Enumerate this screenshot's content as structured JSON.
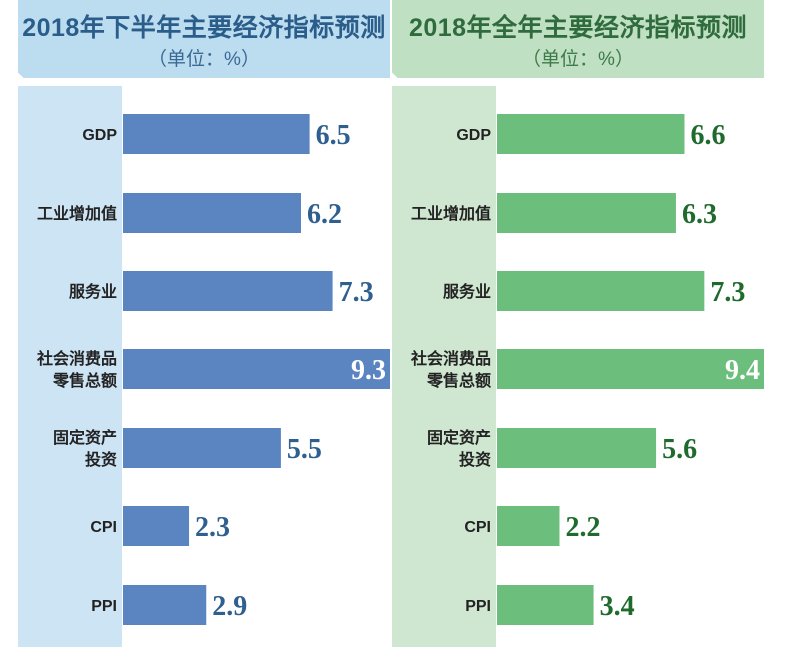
{
  "chart_data": [
    {
      "type": "bar",
      "orientation": "horizontal",
      "title": "2018年下半年主要经济指标预测",
      "subtitle": "（单位：%）",
      "categories": [
        [
          "GDP"
        ],
        [
          "工业增加值"
        ],
        [
          "服务业"
        ],
        [
          "社会消费品",
          "零售总额"
        ],
        [
          "固定资产",
          "投资"
        ],
        [
          "CPI"
        ],
        [
          "PPI"
        ]
      ],
      "values": [
        6.5,
        6.2,
        7.3,
        9.3,
        5.5,
        2.3,
        2.9
      ],
      "value_labels": [
        "6.5",
        "6.2",
        "7.3",
        "9.3",
        "5.5",
        "2.3",
        "2.9"
      ],
      "xlim": [
        0,
        9.3
      ],
      "grid": false,
      "colors": {
        "bar": "#5b85c1",
        "banner": "#bcdcf0",
        "label_bg": "#cde4f4",
        "value_text": "#2e5f8f",
        "title_text": "#2b5d8a"
      }
    },
    {
      "type": "bar",
      "orientation": "horizontal",
      "title": "2018年全年主要经济指标预测",
      "subtitle": "（单位：%）",
      "categories": [
        [
          "GDP"
        ],
        [
          "工业增加值"
        ],
        [
          "服务业"
        ],
        [
          "社会消费品",
          "零售总额"
        ],
        [
          "固定资产",
          "投资"
        ],
        [
          "CPI"
        ],
        [
          "PPI"
        ]
      ],
      "values": [
        6.6,
        6.3,
        7.3,
        9.4,
        5.6,
        2.2,
        3.4
      ],
      "value_labels": [
        "6.6",
        "6.3",
        "7.3",
        "9.4",
        "5.6",
        "2.2",
        "3.4"
      ],
      "xlim": [
        0,
        9.4
      ],
      "grid": false,
      "colors": {
        "bar": "#6cbe7c",
        "banner": "#bfe0c3",
        "label_bg": "#cfe6d0",
        "value_text": "#1f6b2e",
        "title_text": "#2f6b3c"
      }
    }
  ]
}
